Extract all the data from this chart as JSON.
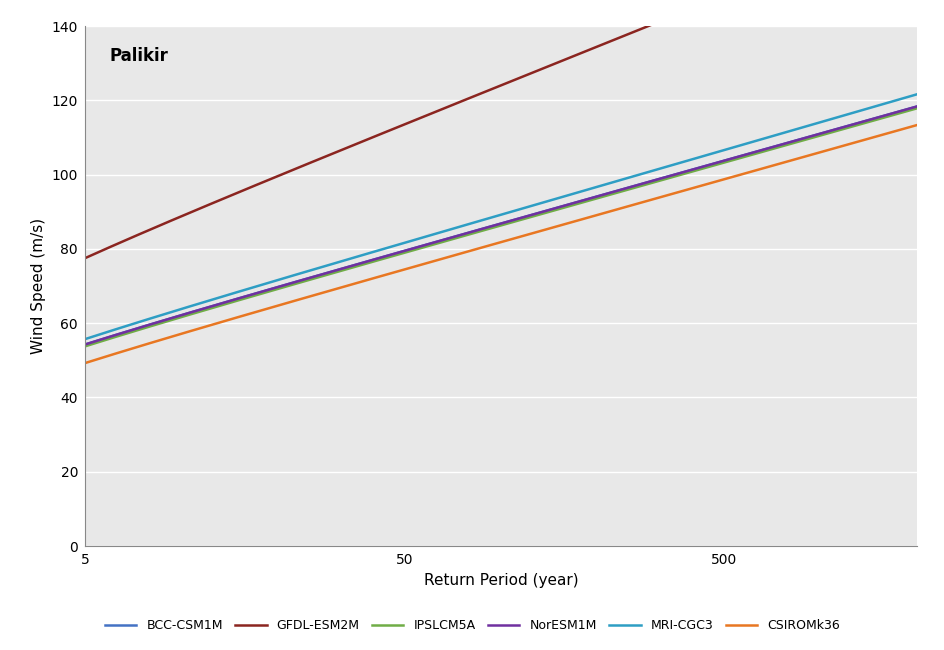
{
  "title": "Palikir",
  "xlabel": "Return Period (year)",
  "ylabel": "Wind Speed (m/s)",
  "background_color": "#e8e8e8",
  "ylim": [
    0,
    140
  ],
  "yticks": [
    0,
    20,
    40,
    60,
    80,
    100,
    120,
    140
  ],
  "x_min": 5,
  "x_max": 2000,
  "xtick_positions": [
    5,
    50,
    500
  ],
  "xtick_labels": [
    "5",
    "50",
    "500"
  ],
  "models": [
    {
      "name": "BCC-CSM1M",
      "color": "#4472C4",
      "u": 38.5,
      "alpha": 10.5
    },
    {
      "name": "GFDL-ESM2M",
      "color": "#8B2520",
      "u": 55.0,
      "alpha": 15.0
    },
    {
      "name": "IPSLCM5A",
      "color": "#70AD47",
      "u": 38.0,
      "alpha": 10.5
    },
    {
      "name": "NorESM1M",
      "color": "#7030A0",
      "u": 38.5,
      "alpha": 10.5
    },
    {
      "name": "MRI-CGC3",
      "color": "#2E9EC4",
      "u": 39.5,
      "alpha": 10.8
    },
    {
      "name": "CSIROMk36",
      "color": "#E87722",
      "u": 33.5,
      "alpha": 10.5
    }
  ]
}
